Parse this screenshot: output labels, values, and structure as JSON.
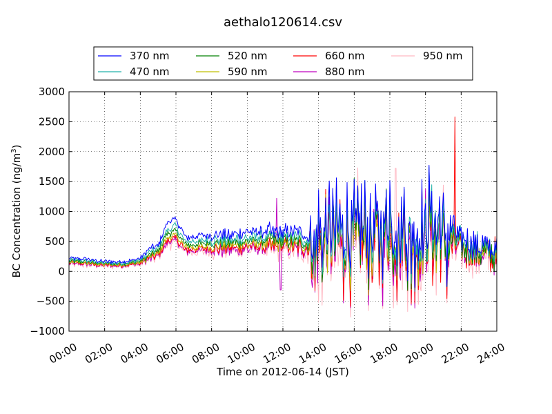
{
  "chart_data": {
    "type": "line",
    "title": "aethalo120614.csv",
    "xlabel": "Time on 2012-06-14 (JST)",
    "ylabel": "BC Concentration (ng/m",
    "ylabel_sup": "3",
    "ylabel_end": ")",
    "xlim": [
      "00:00",
      "24:00"
    ],
    "ylim": [
      -1000,
      3000
    ],
    "x_ticks": [
      "00:00",
      "02:00",
      "04:00",
      "06:00",
      "08:00",
      "10:00",
      "12:00",
      "14:00",
      "16:00",
      "18:00",
      "20:00",
      "22:00",
      "24:00"
    ],
    "y_ticks": [
      "3000",
      "2500",
      "2000",
      "1500",
      "1000",
      "500",
      "0",
      "−500",
      "−1000"
    ],
    "grid": true,
    "legend_position": "top-center",
    "series": [
      {
        "name": "370 nm",
        "color": "#0000ff"
      },
      {
        "name": "470 nm",
        "color": "#20b2aa"
      },
      {
        "name": "520 nm",
        "color": "#008000"
      },
      {
        "name": "590 nm",
        "color": "#bfbf00"
      },
      {
        "name": "660 nm",
        "color": "#ff0000"
      },
      {
        "name": "880 nm",
        "color": "#bf00bf"
      },
      {
        "name": "950 nm",
        "color": "#ffb6c1"
      }
    ],
    "baseline_profile": {
      "hour": [
        0,
        1,
        2,
        3,
        4,
        4.5,
        5,
        5.5,
        6,
        6.5,
        7,
        8,
        9,
        10,
        11,
        12,
        13,
        13.7,
        14,
        16,
        18,
        20,
        20.3,
        21,
        21.5,
        22,
        23,
        24
      ],
      "value": [
        150,
        140,
        110,
        110,
        150,
        250,
        300,
        560,
        600,
        400,
        400,
        420,
        420,
        450,
        460,
        450,
        450,
        380,
        420,
        500,
        560,
        420,
        750,
        400,
        500,
        380,
        320,
        250
      ]
    },
    "peaks": [
      {
        "series": "660 nm",
        "x": "21:39",
        "y": 2580
      },
      {
        "series": "880 nm",
        "x": "11:39",
        "y": 1220
      },
      {
        "series": "880 nm",
        "x": "11:53",
        "y": -310
      },
      {
        "series": "950 nm",
        "x": "18:20",
        "y": 1720
      },
      {
        "series": "950 nm",
        "x": "14:00",
        "y": -520
      }
    ]
  }
}
